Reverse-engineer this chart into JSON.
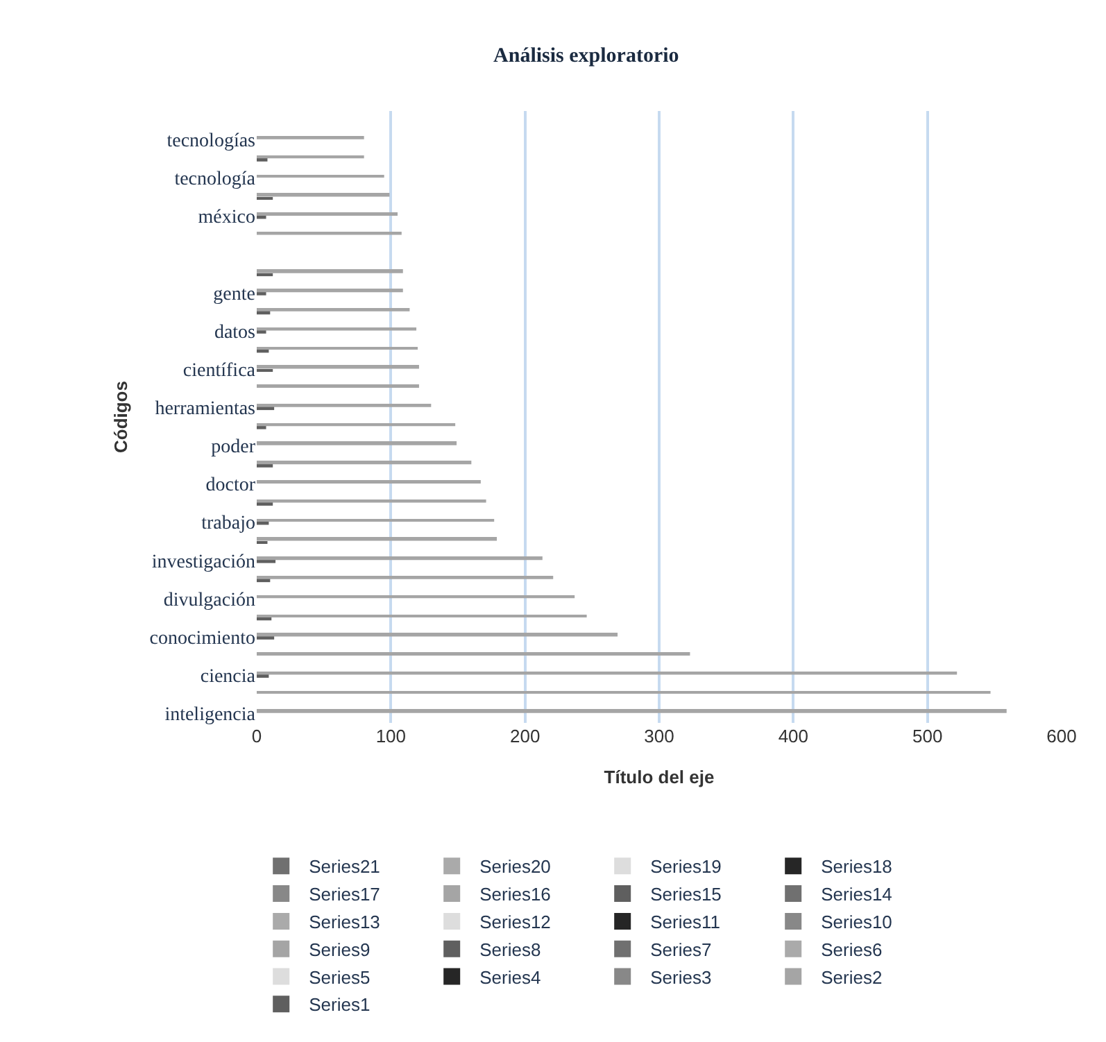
{
  "chart_data": {
    "type": "bar",
    "orientation": "horizontal",
    "title": "Análisis exploratorio",
    "xlabel": "Título del eje",
    "ylabel": "Códigos",
    "categories": [
      null,
      "tecnologías",
      null,
      "tecnología",
      null,
      "méxico",
      null,
      null,
      null,
      "gente",
      null,
      "datos",
      null,
      "científica",
      null,
      "herramientas",
      null,
      "poder",
      null,
      "doctor",
      null,
      "trabajo",
      null,
      "investigación",
      null,
      "divulgación",
      null,
      "conocimiento",
      null,
      "ciencia",
      null,
      "inteligencia"
    ],
    "xlim": [
      0,
      600
    ],
    "xticks": [
      0,
      100,
      200,
      300,
      400,
      500,
      600
    ],
    "grid": "x",
    "legend": "bottom",
    "series": [
      {
        "name": "Series1",
        "color": "#5f5f5f",
        "values": [
          null,
          null,
          8,
          null,
          12,
          7,
          null,
          null,
          12,
          7,
          10,
          7,
          9,
          12,
          null,
          13,
          7,
          null,
          12,
          null,
          12,
          9,
          8,
          14,
          10,
          null,
          11,
          13,
          null,
          9,
          null,
          null
        ]
      },
      {
        "name": "Series2",
        "color": "#a5a5a5",
        "values": [
          null,
          80,
          80,
          95,
          99,
          105,
          108,
          null,
          109,
          109,
          114,
          119,
          120,
          121,
          121,
          130,
          148,
          149,
          160,
          167,
          171,
          177,
          179,
          213,
          221,
          237,
          246,
          269,
          323,
          522,
          547,
          559
        ]
      },
      {
        "name": "Series3",
        "color": "#888888",
        "values": [
          null,
          null,
          null,
          null,
          null,
          null,
          null,
          null,
          null,
          null,
          null,
          null,
          null,
          null,
          null,
          null,
          null,
          null,
          null,
          null,
          null,
          null,
          null,
          null,
          null,
          null,
          null,
          null,
          null,
          null,
          null,
          null
        ]
      },
      {
        "name": "Series4",
        "color": "#262626",
        "values": [
          null,
          null,
          null,
          null,
          null,
          null,
          null,
          null,
          null,
          null,
          null,
          null,
          null,
          null,
          null,
          null,
          null,
          null,
          null,
          null,
          null,
          null,
          null,
          null,
          null,
          null,
          null,
          null,
          null,
          null,
          null,
          null
        ]
      },
      {
        "name": "Series5",
        "color": "#dddddd",
        "values": [
          null,
          null,
          null,
          null,
          null,
          null,
          null,
          null,
          null,
          null,
          null,
          null,
          null,
          null,
          null,
          null,
          null,
          null,
          null,
          null,
          null,
          null,
          null,
          null,
          null,
          null,
          null,
          null,
          null,
          null,
          null,
          null
        ]
      },
      {
        "name": "Series6",
        "color": "#aaaaaa",
        "values": [
          null,
          null,
          null,
          null,
          null,
          null,
          null,
          null,
          null,
          null,
          null,
          null,
          null,
          null,
          null,
          null,
          null,
          null,
          null,
          null,
          null,
          null,
          null,
          null,
          null,
          null,
          null,
          null,
          null,
          null,
          null,
          null
        ]
      },
      {
        "name": "Series7",
        "color": "#707070",
        "values": [
          null,
          null,
          null,
          null,
          null,
          null,
          null,
          null,
          null,
          null,
          null,
          null,
          null,
          null,
          null,
          null,
          null,
          null,
          null,
          null,
          null,
          null,
          null,
          null,
          null,
          null,
          null,
          null,
          null,
          null,
          null,
          null
        ]
      },
      {
        "name": "Series8",
        "color": "#5f5f5f",
        "values": [
          null,
          null,
          null,
          null,
          null,
          null,
          null,
          null,
          null,
          null,
          null,
          null,
          null,
          null,
          null,
          null,
          null,
          null,
          null,
          null,
          null,
          null,
          null,
          null,
          null,
          null,
          null,
          null,
          null,
          null,
          null,
          null
        ]
      },
      {
        "name": "Series9",
        "color": "#a5a5a5",
        "values": [
          null,
          null,
          null,
          null,
          null,
          null,
          null,
          null,
          null,
          null,
          null,
          null,
          null,
          null,
          null,
          null,
          null,
          null,
          null,
          null,
          null,
          null,
          null,
          null,
          null,
          null,
          null,
          null,
          null,
          null,
          null,
          null
        ]
      },
      {
        "name": "Series10",
        "color": "#888888",
        "values": [
          null,
          null,
          null,
          null,
          null,
          null,
          null,
          null,
          null,
          null,
          null,
          null,
          null,
          null,
          null,
          null,
          null,
          null,
          null,
          null,
          null,
          null,
          null,
          null,
          null,
          null,
          null,
          null,
          null,
          null,
          null,
          null
        ]
      },
      {
        "name": "Series11",
        "color": "#262626",
        "values": [
          null,
          null,
          null,
          null,
          null,
          null,
          null,
          null,
          null,
          null,
          null,
          null,
          null,
          null,
          null,
          null,
          null,
          null,
          null,
          null,
          null,
          null,
          null,
          null,
          null,
          null,
          null,
          null,
          null,
          null,
          null,
          null
        ]
      },
      {
        "name": "Series12",
        "color": "#dddddd",
        "values": [
          null,
          null,
          null,
          null,
          null,
          null,
          null,
          null,
          null,
          null,
          null,
          null,
          null,
          null,
          null,
          null,
          null,
          null,
          null,
          null,
          null,
          null,
          null,
          null,
          null,
          null,
          null,
          null,
          null,
          null,
          null,
          null
        ]
      },
      {
        "name": "Series13",
        "color": "#aaaaaa",
        "values": [
          null,
          null,
          null,
          null,
          null,
          null,
          null,
          null,
          null,
          null,
          null,
          null,
          null,
          null,
          null,
          null,
          null,
          null,
          null,
          null,
          null,
          null,
          null,
          null,
          null,
          null,
          null,
          null,
          null,
          null,
          null,
          null
        ]
      },
      {
        "name": "Series14",
        "color": "#707070",
        "values": [
          null,
          null,
          null,
          null,
          null,
          null,
          null,
          null,
          null,
          null,
          null,
          null,
          null,
          null,
          null,
          null,
          null,
          null,
          null,
          null,
          null,
          null,
          null,
          null,
          null,
          null,
          null,
          null,
          null,
          null,
          null,
          null
        ]
      },
      {
        "name": "Series15",
        "color": "#5f5f5f",
        "values": [
          null,
          null,
          null,
          null,
          null,
          null,
          null,
          null,
          null,
          null,
          null,
          null,
          null,
          null,
          null,
          null,
          null,
          null,
          null,
          null,
          null,
          null,
          null,
          null,
          null,
          null,
          null,
          null,
          null,
          null,
          null,
          null
        ]
      },
      {
        "name": "Series16",
        "color": "#a5a5a5",
        "values": [
          null,
          null,
          null,
          null,
          null,
          null,
          null,
          null,
          null,
          null,
          null,
          null,
          null,
          null,
          null,
          null,
          null,
          null,
          null,
          null,
          null,
          null,
          null,
          null,
          null,
          null,
          null,
          null,
          null,
          null,
          null,
          null
        ]
      },
      {
        "name": "Series17",
        "color": "#888888",
        "values": [
          null,
          null,
          null,
          null,
          null,
          null,
          null,
          null,
          null,
          null,
          null,
          null,
          null,
          null,
          null,
          null,
          null,
          null,
          null,
          null,
          null,
          null,
          null,
          null,
          null,
          null,
          null,
          null,
          null,
          null,
          null,
          null
        ]
      },
      {
        "name": "Series18",
        "color": "#262626",
        "values": [
          null,
          null,
          null,
          null,
          null,
          null,
          null,
          null,
          null,
          null,
          null,
          null,
          null,
          null,
          null,
          null,
          null,
          null,
          null,
          null,
          null,
          null,
          null,
          null,
          null,
          null,
          null,
          null,
          null,
          null,
          null,
          null
        ]
      },
      {
        "name": "Series19",
        "color": "#dddddd",
        "values": [
          null,
          null,
          null,
          null,
          null,
          null,
          null,
          null,
          null,
          null,
          null,
          null,
          null,
          null,
          null,
          null,
          null,
          null,
          null,
          null,
          null,
          null,
          null,
          null,
          null,
          null,
          null,
          null,
          null,
          null,
          null,
          null
        ]
      },
      {
        "name": "Series20",
        "color": "#aaaaaa",
        "values": [
          null,
          null,
          null,
          null,
          null,
          null,
          null,
          null,
          null,
          null,
          null,
          null,
          null,
          null,
          null,
          null,
          null,
          null,
          null,
          null,
          null,
          null,
          null,
          null,
          null,
          null,
          null,
          null,
          null,
          null,
          null,
          null
        ]
      },
      {
        "name": "Series21",
        "color": "#707070",
        "values": [
          null,
          null,
          null,
          null,
          null,
          null,
          null,
          null,
          null,
          null,
          null,
          null,
          null,
          null,
          null,
          null,
          null,
          null,
          null,
          null,
          null,
          null,
          null,
          null,
          null,
          null,
          null,
          null,
          null,
          null,
          null,
          null
        ]
      }
    ]
  }
}
